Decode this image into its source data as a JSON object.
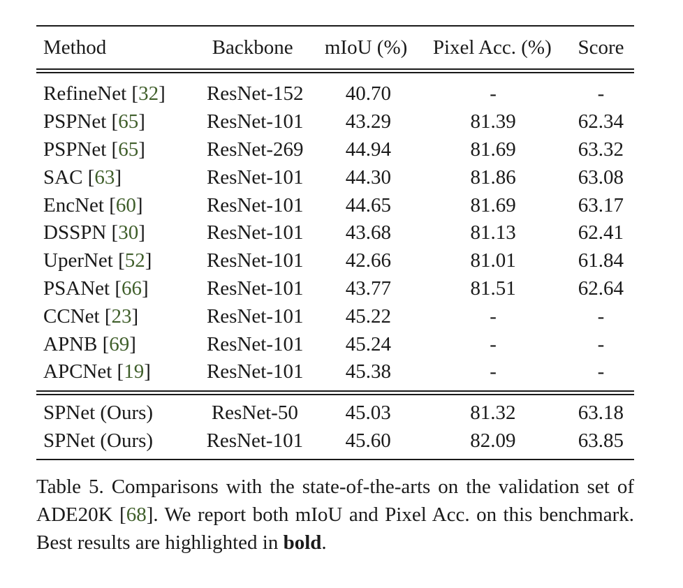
{
  "table": {
    "columns": [
      "Method",
      "Backbone",
      "mIoU (%)",
      "Pixel Acc. (%)",
      "Score"
    ],
    "rows": [
      {
        "method": "RefineNet",
        "ref": "32",
        "backbone": "ResNet-152",
        "miou": "40.70",
        "pixel_acc": "-",
        "score": "-"
      },
      {
        "method": "PSPNet",
        "ref": "65",
        "backbone": "ResNet-101",
        "miou": "43.29",
        "pixel_acc": "81.39",
        "score": "62.34"
      },
      {
        "method": "PSPNet",
        "ref": "65",
        "backbone": "ResNet-269",
        "miou": "44.94",
        "pixel_acc": "81.69",
        "score": "63.32"
      },
      {
        "method": "SAC",
        "ref": "63",
        "backbone": "ResNet-101",
        "miou": "44.30",
        "pixel_acc": "81.86",
        "score": "63.08"
      },
      {
        "method": "EncNet",
        "ref": "60",
        "backbone": "ResNet-101",
        "miou": "44.65",
        "pixel_acc": "81.69",
        "score": "63.17"
      },
      {
        "method": "DSSPN",
        "ref": "30",
        "backbone": "ResNet-101",
        "miou": "43.68",
        "pixel_acc": "81.13",
        "score": "62.41"
      },
      {
        "method": "UperNet",
        "ref": "52",
        "backbone": "ResNet-101",
        "miou": "42.66",
        "pixel_acc": "81.01",
        "score": "61.84"
      },
      {
        "method": "PSANet",
        "ref": "66",
        "backbone": "ResNet-101",
        "miou": "43.77",
        "pixel_acc": "81.51",
        "score": "62.64"
      },
      {
        "method": "CCNet",
        "ref": "23",
        "backbone": "ResNet-101",
        "miou": "45.22",
        "pixel_acc": "-",
        "score": "-"
      },
      {
        "method": "APNB",
        "ref": "69",
        "backbone": "ResNet-101",
        "miou": "45.24",
        "pixel_acc": "-",
        "score": "-"
      },
      {
        "method": "APCNet",
        "ref": "19",
        "backbone": "ResNet-101",
        "miou": "45.38",
        "pixel_acc": "-",
        "score": "-"
      }
    ],
    "ours_rows": [
      {
        "method": "SPNet (Ours)",
        "backbone": "ResNet-50",
        "miou": "45.03",
        "pixel_acc": "81.32",
        "score": "63.18"
      },
      {
        "method": "SPNet (Ours)",
        "backbone": "ResNet-101",
        "miou": "45.60",
        "pixel_acc": "82.09",
        "score": "63.85"
      }
    ]
  },
  "caption": {
    "part1": "Table 5. Comparisons with the state-of-the-arts on the validation set of ADE20K [",
    "ref": "68",
    "part2": "]. We report both mIoU and Pixel Acc. on this benchmark. Best results are highlighted in ",
    "bold": "bold",
    "part3": "."
  }
}
